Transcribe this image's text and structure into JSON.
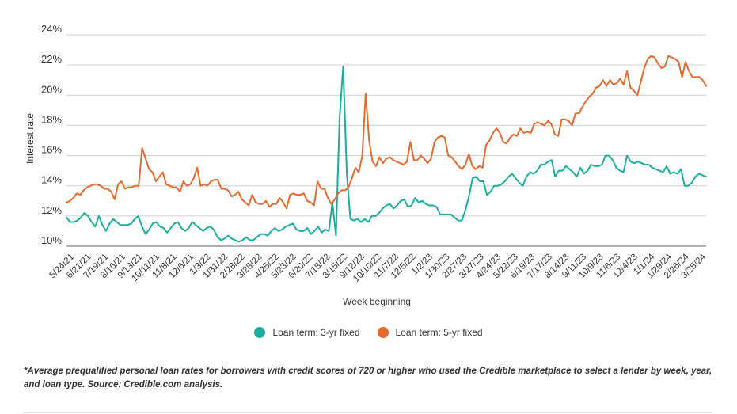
{
  "chart_data": {
    "type": "line",
    "xlabel": "Week beginning",
    "ylabel": "Interest rate",
    "ylim": [
      10,
      24
    ],
    "yticks": [
      "10%",
      "12%",
      "14%",
      "16%",
      "18%",
      "20%",
      "22%",
      "24%"
    ],
    "grid": "horizontal",
    "legend_position": "bottom-center",
    "x_tick_labels": [
      "5/24/21",
      "6/21/21",
      "7/19/21",
      "8/16/21",
      "9/13/21",
      "10/11/21",
      "11/8/21",
      "12/6/21",
      "1/3/22",
      "1/31/22",
      "2/28/22",
      "3/28/22",
      "4/25/22",
      "5/23/22",
      "6/20/22",
      "7/18/22",
      "8/15/22",
      "9/12/22",
      "10/10/22",
      "11/7/22",
      "12/5/22",
      "1/2/23",
      "1/30/23",
      "2/27/23",
      "3/27/23",
      "4/24/23",
      "5/22/23",
      "6/19/23",
      "7/17/23",
      "8/14/23",
      "9/11/23",
      "10/9/23",
      "11/6/23",
      "12/4/23",
      "1/1/24",
      "1/29/24",
      "2/26/24",
      "3/25/24"
    ],
    "x_index_range": [
      0,
      148
    ],
    "series": [
      {
        "name": "Loan term: 3-yr fixed",
        "color": "#1aae9f",
        "values": [
          11.9,
          11.6,
          11.6,
          11.7,
          11.9,
          12.2,
          12.0,
          11.6,
          11.3,
          12.0,
          11.4,
          11.0,
          11.5,
          11.8,
          11.6,
          11.4,
          11.4,
          11.4,
          11.5,
          11.8,
          12.0,
          11.3,
          10.8,
          11.1,
          11.5,
          11.6,
          11.3,
          11.2,
          10.9,
          11.2,
          11.5,
          11.6,
          11.2,
          11.0,
          11.2,
          11.6,
          11.4,
          11.2,
          11.0,
          11.2,
          11.3,
          11.1,
          10.6,
          10.4,
          10.5,
          10.7,
          10.5,
          10.4,
          10.3,
          10.4,
          10.6,
          10.4,
          10.4,
          10.6,
          10.8,
          10.8,
          10.7,
          11.0,
          11.2,
          11.0,
          11.1,
          11.3,
          11.4,
          11.5,
          11.1,
          11.0,
          11.0,
          11.2,
          10.8,
          11.0,
          11.3,
          10.9,
          11.1,
          11.0,
          12.9,
          10.7,
          18.5,
          21.9,
          14.8,
          11.8,
          11.7,
          11.8,
          11.6,
          11.8,
          11.6,
          12.0,
          12.0,
          12.2,
          12.5,
          12.7,
          12.8,
          12.5,
          12.7,
          13.0,
          13.1,
          12.6,
          12.7,
          13.2,
          12.9,
          13.0,
          12.8,
          12.7,
          12.7,
          12.6,
          12.1,
          12.1,
          12.1,
          12.1,
          11.9,
          11.7,
          11.7,
          12.4,
          13.3,
          14.5,
          14.6,
          14.3,
          14.3,
          13.4,
          13.6,
          14.0,
          14.0,
          14.1,
          14.3,
          14.6,
          14.8,
          14.5,
          14.2,
          14.0,
          14.6,
          14.9,
          14.8,
          15.0,
          15.4,
          15.4,
          15.6,
          15.7,
          14.6,
          15.0,
          15.0,
          15.3,
          15.1,
          14.9,
          14.6,
          15.2,
          14.8,
          15.0,
          15.4,
          15.3,
          15.3,
          15.4,
          16.0,
          16.0,
          15.7,
          15.2,
          15.0,
          14.9,
          16.0,
          15.6,
          15.5,
          15.6,
          15.5,
          15.4,
          15.4,
          15.2,
          15.1,
          15.0,
          14.9,
          15.3,
          14.8,
          14.9,
          14.8,
          15.1,
          14.0,
          14.0,
          14.2,
          14.6,
          14.8,
          14.7,
          14.6
        ]
      },
      {
        "name": "Loan term: 5-yr fixed",
        "color": "#e8692d",
        "values": [
          12.9,
          13.0,
          13.2,
          13.5,
          13.4,
          13.7,
          13.9,
          14.0,
          14.1,
          14.1,
          14.0,
          13.8,
          13.8,
          13.6,
          13.1,
          14.1,
          14.3,
          13.8,
          13.9,
          13.9,
          14.0,
          14.0,
          16.5,
          15.8,
          15.1,
          14.9,
          14.3,
          14.6,
          14.9,
          14.1,
          14.0,
          13.9,
          13.9,
          13.6,
          14.3,
          14.0,
          14.1,
          14.5,
          15.2,
          14.0,
          14.1,
          14.0,
          14.3,
          14.4,
          14.4,
          13.8,
          13.8,
          13.7,
          13.3,
          13.4,
          13.6,
          13.1,
          12.9,
          12.7,
          13.4,
          12.9,
          12.8,
          12.8,
          13.0,
          12.6,
          12.8,
          12.8,
          13.2,
          12.9,
          12.5,
          13.4,
          13.5,
          13.4,
          13.4,
          13.5,
          13.0,
          12.9,
          12.7,
          14.3,
          13.8,
          13.8,
          13.2,
          12.8,
          13.1,
          13.5,
          13.7,
          13.7,
          13.9,
          14.5,
          15.2,
          14.9,
          16.0,
          20.1,
          17.0,
          15.6,
          15.3,
          15.9,
          15.5,
          15.8,
          15.9,
          15.7,
          15.6,
          15.5,
          15.4,
          15.6,
          16.9,
          15.7,
          15.7,
          16.0,
          15.8,
          15.5,
          15.8,
          16.9,
          17.2,
          17.3,
          17.2,
          16.0,
          15.9,
          15.6,
          15.3,
          15.1,
          15.4,
          16.1,
          15.3,
          15.1,
          15.3,
          15.2,
          16.7,
          17.0,
          17.5,
          17.8,
          17.5,
          16.9,
          16.8,
          17.2,
          17.4,
          17.3,
          17.8,
          17.5,
          17.6,
          17.5,
          18.1,
          18.2,
          18.1,
          18.0,
          18.3,
          18.1,
          17.4,
          17.3,
          18.4,
          18.4,
          18.3,
          18.0,
          18.8,
          18.8,
          19.2,
          19.6,
          19.9,
          20.1,
          20.5,
          20.6,
          21.0,
          20.6,
          21.0,
          20.7,
          20.8,
          21.1,
          20.7,
          21.6,
          20.5,
          20.3,
          20.0,
          20.9,
          21.8,
          22.4,
          22.6,
          22.5,
          22.1,
          21.8,
          21.9,
          22.6,
          22.5,
          22.4,
          22.2,
          21.2,
          22.2,
          21.6,
          21.2,
          21.2,
          21.2,
          21.0,
          20.6
        ]
      }
    ]
  },
  "legend": {
    "items": [
      {
        "label": "Loan term: 3-yr fixed",
        "color": "#1aae9f"
      },
      {
        "label": "Loan term: 5-yr fixed",
        "color": "#e8692d"
      }
    ]
  },
  "footnote": "*Average prequalified personal loan rates for borrowers with credit scores of 720 or higher who used the Credible marketplace to select a lender by week, year, and loan type. Source: Credible.com analysis."
}
